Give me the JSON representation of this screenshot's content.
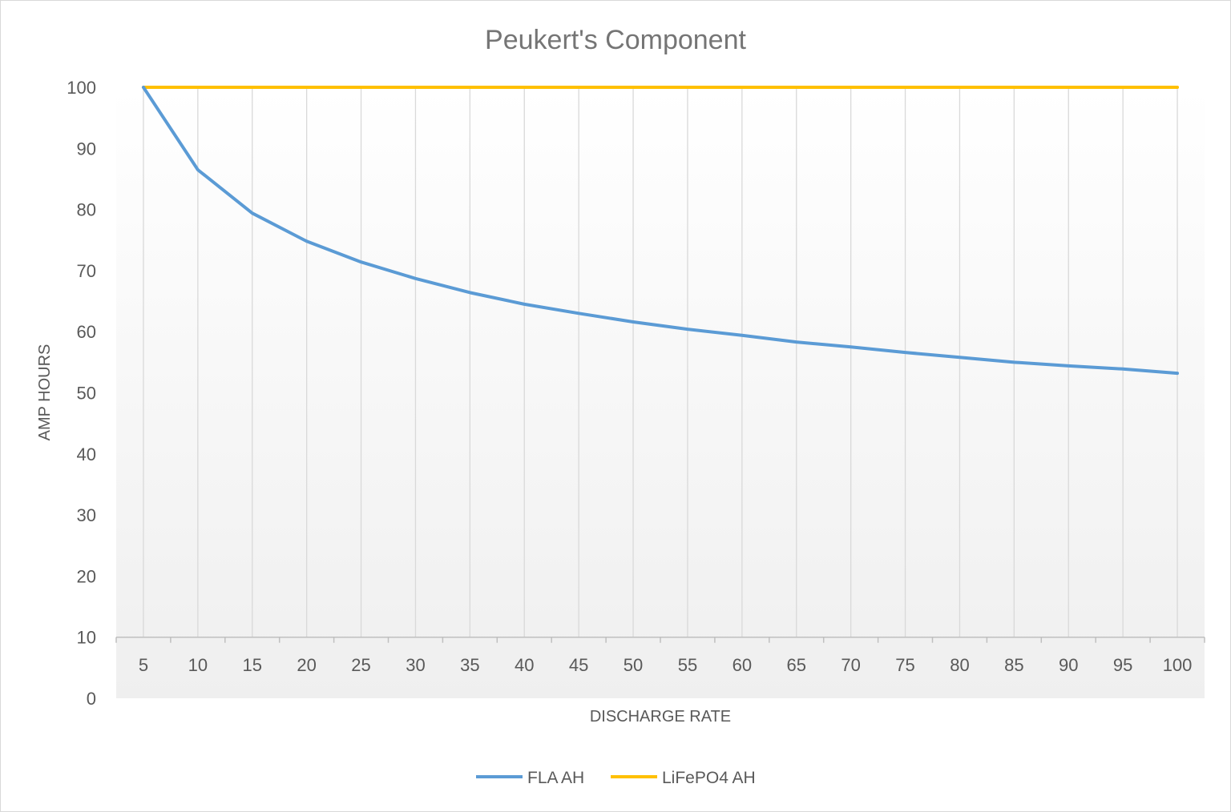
{
  "chart_data": {
    "type": "line",
    "title": "Peukert's Component",
    "xlabel": "DISCHARGE RATE",
    "ylabel": "AMP HOURS",
    "categories": [
      "5",
      "10",
      "15",
      "20",
      "25",
      "30",
      "35",
      "40",
      "45",
      "50",
      "55",
      "60",
      "65",
      "70",
      "75",
      "80",
      "85",
      "90",
      "95",
      "100"
    ],
    "ylim": [
      0,
      100
    ],
    "yticks": [
      0,
      10,
      20,
      30,
      40,
      50,
      60,
      70,
      80,
      90,
      100
    ],
    "x_axis_crosses_at": 10,
    "grid": "vertical",
    "legend_position": "bottom",
    "series": [
      {
        "name": "FLA AH",
        "color": "#5b9bd5",
        "values": [
          100,
          86.5,
          79.4,
          74.8,
          71.4,
          68.7,
          66.4,
          64.5,
          63.0,
          61.6,
          60.4,
          59.4,
          58.3,
          57.5,
          56.6,
          55.8,
          55.0,
          54.4,
          53.9,
          53.2
        ]
      },
      {
        "name": "LiFePO4 AH",
        "color": "#ffc000",
        "values": [
          100,
          100,
          100,
          100,
          100,
          100,
          100,
          100,
          100,
          100,
          100,
          100,
          100,
          100,
          100,
          100,
          100,
          100,
          100,
          100
        ]
      }
    ]
  }
}
